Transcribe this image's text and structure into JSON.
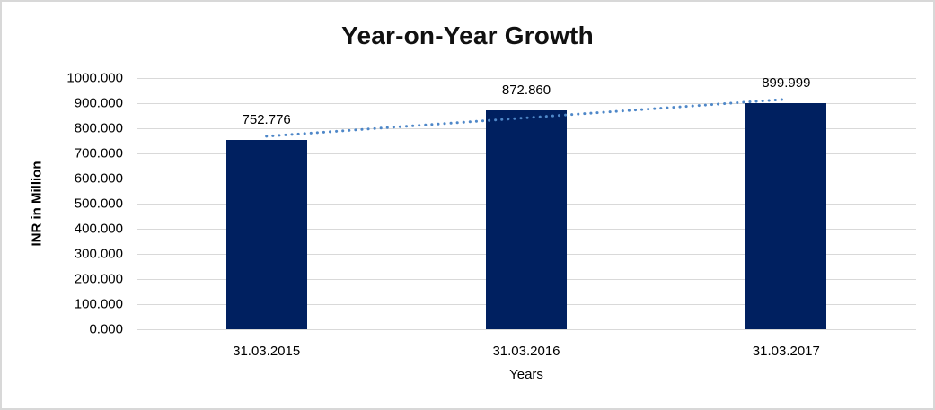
{
  "chart_data": {
    "type": "bar",
    "title": "Year-on-Year Growth",
    "categories": [
      "31.03.2015",
      "31.03.2016",
      "31.03.2017"
    ],
    "values": [
      752.776,
      872.86,
      899.999
    ],
    "data_labels": [
      "752.776",
      "872.860",
      "899.999"
    ],
    "xlabel": "Years",
    "ylabel": "INR in Million",
    "ylim": [
      0,
      1000
    ],
    "ytick_step": 100,
    "ytick_labels": [
      "1000.000",
      "900.000",
      "800.000",
      "700.000",
      "600.000",
      "500.000",
      "400.000",
      "300.000",
      "200.000",
      "100.000",
      "0.000"
    ],
    "grid": true,
    "legend": false,
    "trendline": {
      "type": "linear",
      "style": "dotted"
    },
    "colors": {
      "bar": "#002060",
      "trendline": "#4e87c8",
      "gridline": "#d9d9d9",
      "text": "#000000",
      "title_text": "#111111",
      "background": "#ffffff",
      "frame_border": "#d8d8d8"
    }
  }
}
